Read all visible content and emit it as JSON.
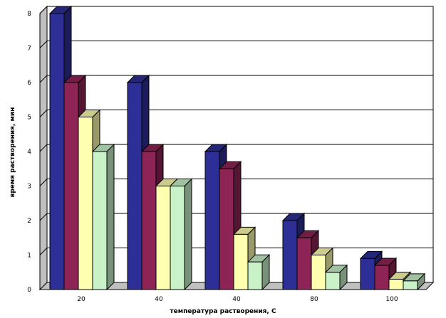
{
  "chart_data": {
    "type": "bar",
    "style": "3d-clustered-column",
    "categories": [
      "20",
      "40",
      "40",
      "80",
      "100"
    ],
    "series": [
      {
        "color": "#2e2f96",
        "values": [
          8,
          6,
          4,
          2,
          0.9
        ]
      },
      {
        "color": "#8e2455",
        "values": [
          6,
          4,
          3.5,
          1.5,
          0.7
        ]
      },
      {
        "color": "#ffffb0",
        "values": [
          5,
          3,
          1.6,
          1.0,
          0.3
        ]
      },
      {
        "color": "#c9f2c9",
        "values": [
          4,
          3,
          0.8,
          0.5,
          0.25
        ]
      }
    ],
    "yticks": [
      "0",
      "1",
      "2",
      "3",
      "4",
      "5",
      "6",
      "7",
      "8"
    ],
    "ylim": [
      0,
      8
    ],
    "xlabel": "температура растворения,  С",
    "ylabel": "время растворения, мин",
    "grid": true,
    "legend": false
  }
}
